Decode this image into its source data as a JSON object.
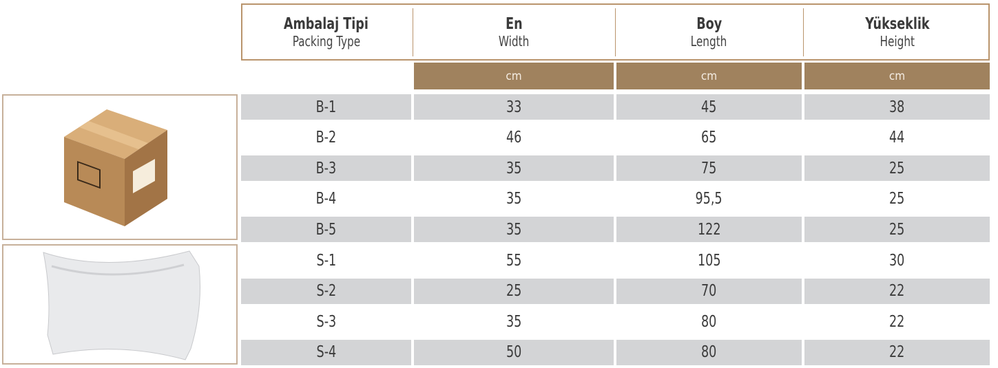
{
  "table": {
    "header": [
      {
        "title": "Ambalaj Tipi",
        "subtitle": "Packing Type"
      },
      {
        "title": "En",
        "subtitle": "Width"
      },
      {
        "title": "Boy",
        "subtitle": "Length"
      },
      {
        "title": "Yükseklik",
        "subtitle": "Height"
      }
    ],
    "units": [
      "cm",
      "cm",
      "cm"
    ],
    "rows": [
      [
        "B-1",
        "33",
        "45",
        "38"
      ],
      [
        "B-2",
        "46",
        "65",
        "44"
      ],
      [
        "B-3",
        "35",
        "75",
        "25"
      ],
      [
        "B-4",
        "35",
        "95,5",
        "25"
      ],
      [
        "B-5",
        "35",
        "122",
        "25"
      ],
      [
        "S-1",
        "55",
        "105",
        "30"
      ],
      [
        "S-2",
        "25",
        "70",
        "22"
      ],
      [
        "S-3",
        "35",
        "80",
        "22"
      ],
      [
        "S-4",
        "50",
        "80",
        "22"
      ]
    ]
  }
}
